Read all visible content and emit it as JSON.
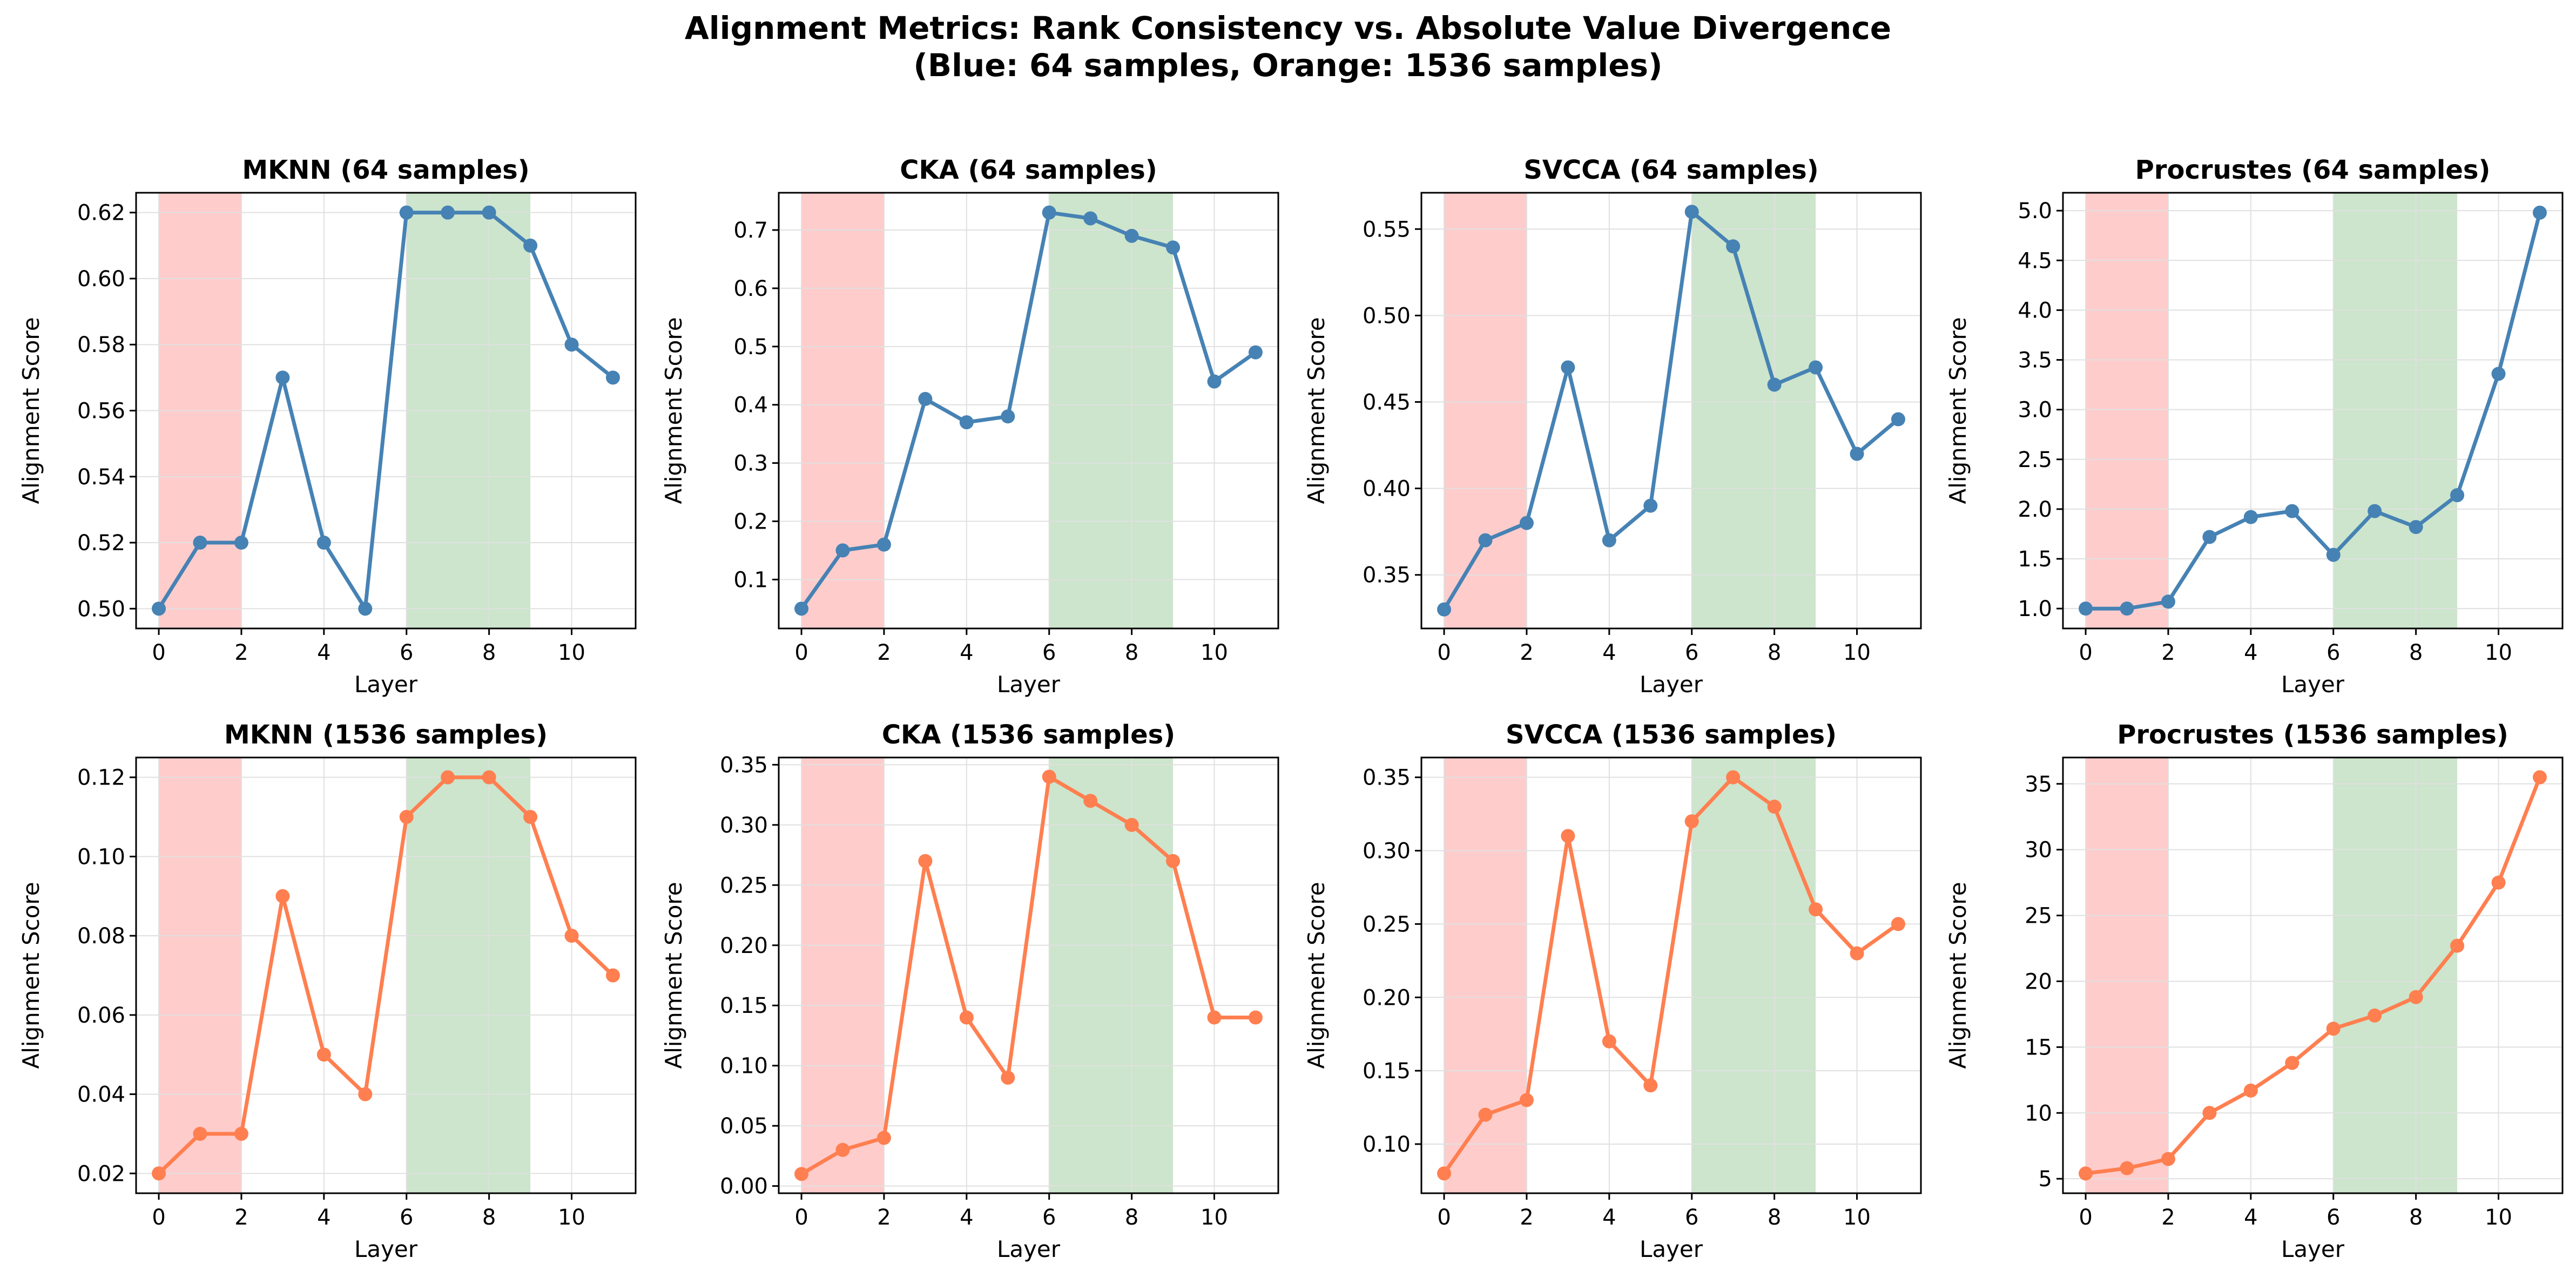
{
  "figure": {
    "title_line1": "Alignment Metrics: Rank Consistency vs. Absolute Value Divergence",
    "title_line2": "(Blue: 64 samples, Orange: 1536 samples)"
  },
  "colors": {
    "blue": "#4682b4",
    "orange": "#ff7f50",
    "red_band": "#ff9999",
    "green_band": "#99cc99",
    "grid": "#e0e0e0"
  },
  "chart_data": [
    {
      "type": "line",
      "title": "MKNN (64 samples)",
      "xlabel": "Layer",
      "ylabel": "Alignment Score",
      "x": [
        0,
        1,
        2,
        3,
        4,
        5,
        6,
        7,
        8,
        9,
        10,
        11
      ],
      "series": [
        {
          "color": "blue",
          "values": [
            0.5,
            0.52,
            0.52,
            0.57,
            0.52,
            0.5,
            0.62,
            0.62,
            0.62,
            0.61,
            0.58,
            0.57
          ]
        }
      ],
      "xlim": [
        -0.55,
        11.55
      ],
      "ylim": [
        0.494,
        0.626
      ],
      "xticks": [
        0,
        2,
        4,
        6,
        8,
        10
      ],
      "xticklabels": [
        "0",
        "2",
        "4",
        "6",
        "8",
        "10"
      ],
      "yticks": [
        0.5,
        0.52,
        0.54,
        0.56,
        0.58,
        0.6,
        0.62
      ],
      "yticklabels": [
        "0.50",
        "0.52",
        "0.54",
        "0.56",
        "0.58",
        "0.60",
        "0.62"
      ],
      "bands": [
        {
          "x0": 0,
          "x1": 2,
          "color": "red_band"
        },
        {
          "x0": 6,
          "x1": 9,
          "color": "green_band"
        }
      ],
      "grid": true
    },
    {
      "type": "line",
      "title": "CKA (64 samples)",
      "xlabel": "Layer",
      "ylabel": "Alignment Score",
      "x": [
        0,
        1,
        2,
        3,
        4,
        5,
        6,
        7,
        8,
        9,
        10,
        11
      ],
      "series": [
        {
          "color": "blue",
          "values": [
            0.05,
            0.15,
            0.16,
            0.41,
            0.37,
            0.38,
            0.73,
            0.72,
            0.69,
            0.67,
            0.44,
            0.49
          ]
        }
      ],
      "xlim": [
        -0.55,
        11.55
      ],
      "ylim": [
        0.016,
        0.764
      ],
      "xticks": [
        0,
        2,
        4,
        6,
        8,
        10
      ],
      "xticklabels": [
        "0",
        "2",
        "4",
        "6",
        "8",
        "10"
      ],
      "yticks": [
        0.1,
        0.2,
        0.3,
        0.4,
        0.5,
        0.6,
        0.7
      ],
      "yticklabels": [
        "0.1",
        "0.2",
        "0.3",
        "0.4",
        "0.5",
        "0.6",
        "0.7"
      ],
      "bands": [
        {
          "x0": 0,
          "x1": 2,
          "color": "red_band"
        },
        {
          "x0": 6,
          "x1": 9,
          "color": "green_band"
        }
      ],
      "grid": true
    },
    {
      "type": "line",
      "title": "SVCCA (64 samples)",
      "xlabel": "Layer",
      "ylabel": "Alignment Score",
      "x": [
        0,
        1,
        2,
        3,
        4,
        5,
        6,
        7,
        8,
        9,
        10,
        11
      ],
      "series": [
        {
          "color": "blue",
          "values": [
            0.33,
            0.37,
            0.38,
            0.47,
            0.37,
            0.39,
            0.56,
            0.54,
            0.46,
            0.47,
            0.42,
            0.44
          ]
        }
      ],
      "xlim": [
        -0.55,
        11.55
      ],
      "ylim": [
        0.319,
        0.571
      ],
      "xticks": [
        0,
        2,
        4,
        6,
        8,
        10
      ],
      "xticklabels": [
        "0",
        "2",
        "4",
        "6",
        "8",
        "10"
      ],
      "yticks": [
        0.35,
        0.4,
        0.45,
        0.5,
        0.55
      ],
      "yticklabels": [
        "0.35",
        "0.40",
        "0.45",
        "0.50",
        "0.55"
      ],
      "bands": [
        {
          "x0": 0,
          "x1": 2,
          "color": "red_band"
        },
        {
          "x0": 6,
          "x1": 9,
          "color": "green_band"
        }
      ],
      "grid": true
    },
    {
      "type": "line",
      "title": "Procrustes (64 samples)",
      "xlabel": "Layer",
      "ylabel": "Alignment Score",
      "x": [
        0,
        1,
        2,
        3,
        4,
        5,
        6,
        7,
        8,
        9,
        10,
        11
      ],
      "series": [
        {
          "color": "blue",
          "values": [
            1.0,
            1.0,
            1.07,
            1.72,
            1.92,
            1.98,
            1.54,
            1.98,
            1.82,
            2.14,
            3.36,
            4.98
          ]
        }
      ],
      "xlim": [
        -0.55,
        11.55
      ],
      "ylim": [
        0.8,
        5.18
      ],
      "xticks": [
        0,
        2,
        4,
        6,
        8,
        10
      ],
      "xticklabels": [
        "0",
        "2",
        "4",
        "6",
        "8",
        "10"
      ],
      "yticks": [
        1.0,
        1.5,
        2.0,
        2.5,
        3.0,
        3.5,
        4.0,
        4.5,
        5.0
      ],
      "yticklabels": [
        "1.0",
        "1.5",
        "2.0",
        "2.5",
        "3.0",
        "3.5",
        "4.0",
        "4.5",
        "5.0"
      ],
      "bands": [
        {
          "x0": 0,
          "x1": 2,
          "color": "red_band"
        },
        {
          "x0": 6,
          "x1": 9,
          "color": "green_band"
        }
      ],
      "grid": true
    },
    {
      "type": "line",
      "title": "MKNN (1536 samples)",
      "xlabel": "Layer",
      "ylabel": "Alignment Score",
      "x": [
        0,
        1,
        2,
        3,
        4,
        5,
        6,
        7,
        8,
        9,
        10,
        11
      ],
      "series": [
        {
          "color": "orange",
          "values": [
            0.02,
            0.03,
            0.03,
            0.09,
            0.05,
            0.04,
            0.11,
            0.12,
            0.12,
            0.11,
            0.08,
            0.07
          ]
        }
      ],
      "xlim": [
        -0.55,
        11.55
      ],
      "ylim": [
        0.015,
        0.125
      ],
      "xticks": [
        0,
        2,
        4,
        6,
        8,
        10
      ],
      "xticklabels": [
        "0",
        "2",
        "4",
        "6",
        "8",
        "10"
      ],
      "yticks": [
        0.02,
        0.04,
        0.06,
        0.08,
        0.1,
        0.12
      ],
      "yticklabels": [
        "0.02",
        "0.04",
        "0.06",
        "0.08",
        "0.10",
        "0.12"
      ],
      "bands": [
        {
          "x0": 0,
          "x1": 2,
          "color": "red_band"
        },
        {
          "x0": 6,
          "x1": 9,
          "color": "green_band"
        }
      ],
      "grid": true
    },
    {
      "type": "line",
      "title": "CKA (1536 samples)",
      "xlabel": "Layer",
      "ylabel": "Alignment Score",
      "x": [
        0,
        1,
        2,
        3,
        4,
        5,
        6,
        7,
        8,
        9,
        10,
        11
      ],
      "series": [
        {
          "color": "orange",
          "values": [
            0.01,
            0.03,
            0.04,
            0.27,
            0.14,
            0.09,
            0.34,
            0.32,
            0.3,
            0.27,
            0.14,
            0.14
          ]
        }
      ],
      "xlim": [
        -0.55,
        11.55
      ],
      "ylim": [
        -0.006,
        0.356
      ],
      "xticks": [
        0,
        2,
        4,
        6,
        8,
        10
      ],
      "xticklabels": [
        "0",
        "2",
        "4",
        "6",
        "8",
        "10"
      ],
      "yticks": [
        0.0,
        0.05,
        0.1,
        0.15,
        0.2,
        0.25,
        0.3,
        0.35
      ],
      "yticklabels": [
        "0.00",
        "0.05",
        "0.10",
        "0.15",
        "0.20",
        "0.25",
        "0.30",
        "0.35"
      ],
      "bands": [
        {
          "x0": 0,
          "x1": 2,
          "color": "red_band"
        },
        {
          "x0": 6,
          "x1": 9,
          "color": "green_band"
        }
      ],
      "grid": true
    },
    {
      "type": "line",
      "title": "SVCCA (1536 samples)",
      "xlabel": "Layer",
      "ylabel": "Alignment Score",
      "x": [
        0,
        1,
        2,
        3,
        4,
        5,
        6,
        7,
        8,
        9,
        10,
        11
      ],
      "series": [
        {
          "color": "orange",
          "values": [
            0.08,
            0.12,
            0.13,
            0.31,
            0.17,
            0.14,
            0.32,
            0.35,
            0.33,
            0.26,
            0.23,
            0.25
          ]
        }
      ],
      "xlim": [
        -0.55,
        11.55
      ],
      "ylim": [
        0.0665,
        0.3635
      ],
      "xticks": [
        0,
        2,
        4,
        6,
        8,
        10
      ],
      "xticklabels": [
        "0",
        "2",
        "4",
        "6",
        "8",
        "10"
      ],
      "yticks": [
        0.1,
        0.15,
        0.2,
        0.25,
        0.3,
        0.35
      ],
      "yticklabels": [
        "0.10",
        "0.15",
        "0.20",
        "0.25",
        "0.30",
        "0.35"
      ],
      "bands": [
        {
          "x0": 0,
          "x1": 2,
          "color": "red_band"
        },
        {
          "x0": 6,
          "x1": 9,
          "color": "green_band"
        }
      ],
      "grid": true
    },
    {
      "type": "line",
      "title": "Procrustes (1536 samples)",
      "xlabel": "Layer",
      "ylabel": "Alignment Score",
      "x": [
        0,
        1,
        2,
        3,
        4,
        5,
        6,
        7,
        8,
        9,
        10,
        11
      ],
      "series": [
        {
          "color": "orange",
          "values": [
            5.4,
            5.8,
            6.5,
            10.0,
            11.7,
            13.8,
            16.4,
            17.4,
            18.8,
            22.7,
            27.5,
            35.5
          ]
        }
      ],
      "xlim": [
        -0.55,
        11.55
      ],
      "ylim": [
        3.9,
        37.0
      ],
      "xticks": [
        0,
        2,
        4,
        6,
        8,
        10
      ],
      "xticklabels": [
        "0",
        "2",
        "4",
        "6",
        "8",
        "10"
      ],
      "yticks": [
        5,
        10,
        15,
        20,
        25,
        30,
        35
      ],
      "yticklabels": [
        "5",
        "10",
        "15",
        "20",
        "25",
        "30",
        "35"
      ],
      "bands": [
        {
          "x0": 0,
          "x1": 2,
          "color": "red_band"
        },
        {
          "x0": 6,
          "x1": 9,
          "color": "green_band"
        }
      ],
      "grid": true
    }
  ]
}
